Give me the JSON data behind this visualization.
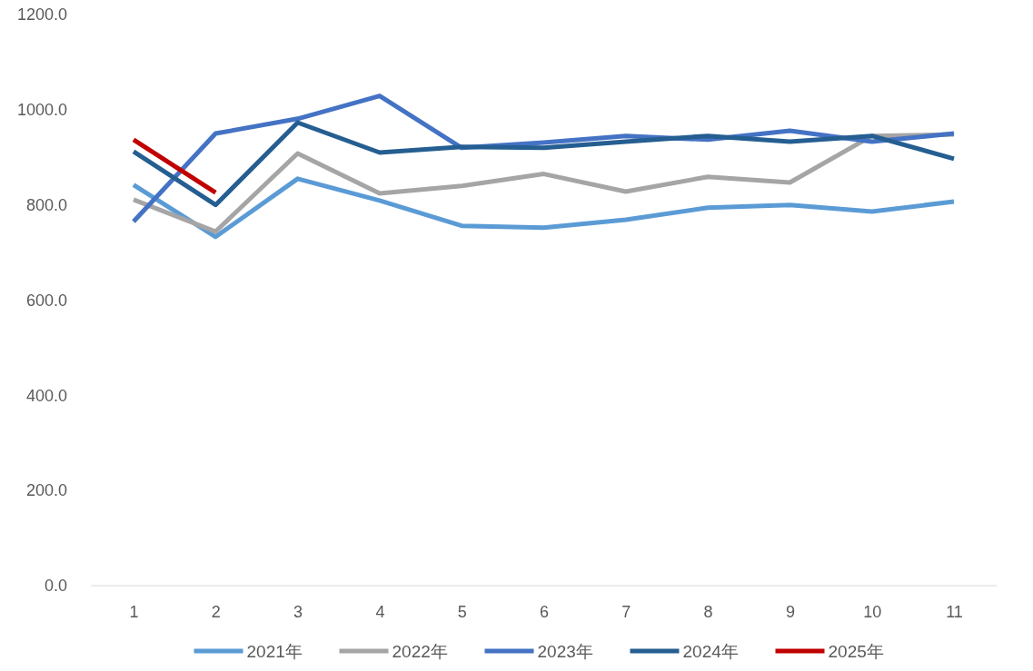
{
  "chart_data": {
    "type": "line",
    "categories": [
      "1",
      "2",
      "3",
      "4",
      "5",
      "6",
      "7",
      "8",
      "9",
      "10",
      "11"
    ],
    "series": [
      {
        "name": "2021年",
        "color": "#5b9bd5",
        "values": [
          842,
          733,
          855,
          809,
          756,
          752,
          769,
          794,
          800,
          786,
          807
        ]
      },
      {
        "name": "2022年",
        "color": "#a5a5a5",
        "values": [
          811,
          744,
          908,
          824,
          840,
          865,
          828,
          859,
          847,
          945,
          948
        ]
      },
      {
        "name": "2023年",
        "color": "#4472c4",
        "values": [
          765,
          950,
          981,
          1029,
          920,
          931,
          945,
          937,
          956,
          933,
          950
        ]
      },
      {
        "name": "2024年",
        "color": "#255e91",
        "values": [
          912,
          800,
          973,
          910,
          922,
          920,
          933,
          945,
          933,
          945,
          897
        ]
      },
      {
        "name": "2025年",
        "color": "#c00000",
        "values": [
          937,
          826,
          null,
          null,
          null,
          null,
          null,
          null,
          null,
          null,
          null
        ]
      }
    ],
    "ylim": [
      0,
      1200
    ],
    "yticks": [
      {
        "value": 0,
        "label": "0.0"
      },
      {
        "value": 200,
        "label": "200.0"
      },
      {
        "value": 400,
        "label": "400.0"
      },
      {
        "value": 600,
        "label": "600.0"
      },
      {
        "value": 800,
        "label": "800.0"
      },
      {
        "value": 1000,
        "label": "1000.0"
      },
      {
        "value": 1200,
        "label": "1200.0"
      }
    ],
    "grid": false,
    "legend": "bottom",
    "marker": "none",
    "line_style": "solid"
  }
}
